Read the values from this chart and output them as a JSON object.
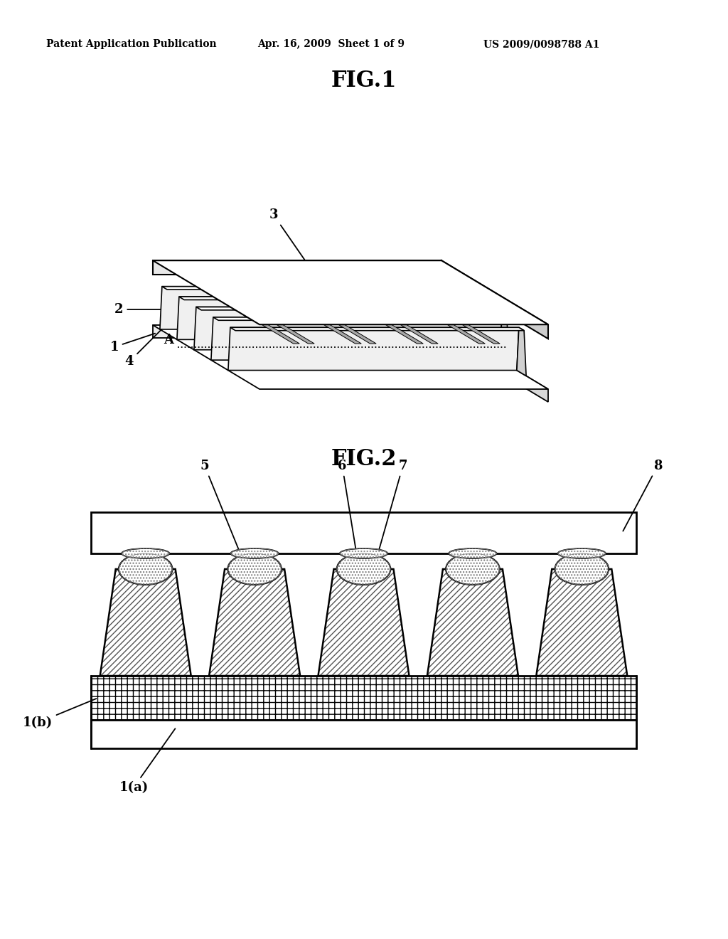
{
  "bg_color": "#ffffff",
  "header_left": "Patent Application Publication",
  "header_center": "Apr. 16, 2009  Sheet 1 of 9",
  "header_right": "US 2009/0098788 A1",
  "fig1_title": "FIG.1",
  "fig2_title": "FIG.2",
  "lc": "#000000"
}
